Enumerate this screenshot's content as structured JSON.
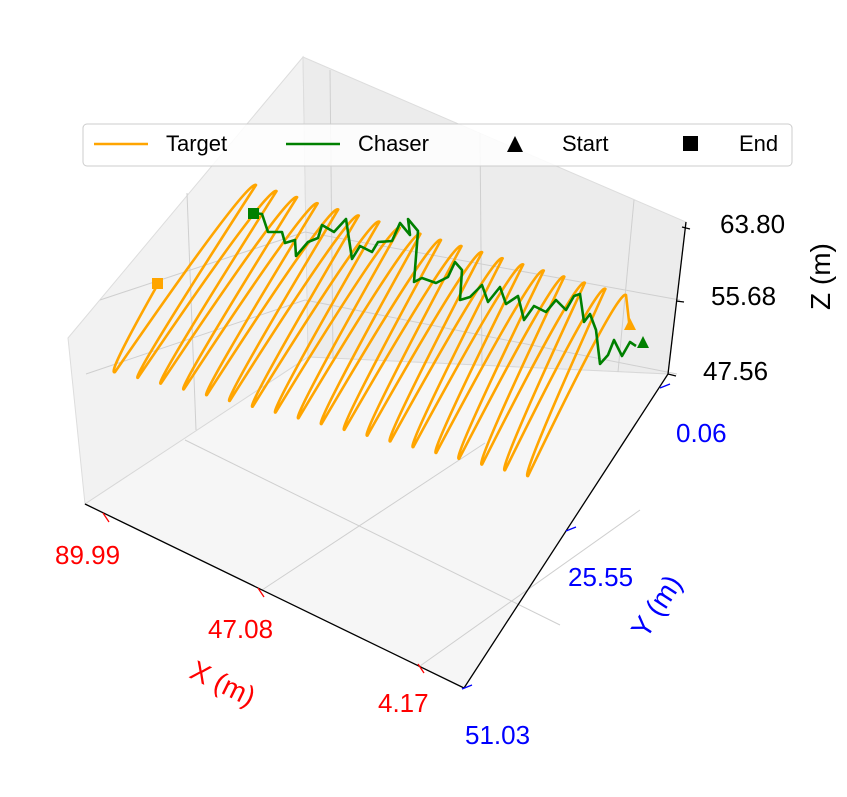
{
  "chart_data": {
    "type": "line3d",
    "title": "",
    "axes": {
      "x": {
        "label": "X (m)",
        "ticks": [
          "89.99",
          "47.08",
          "4.17"
        ],
        "range": [
          4.17,
          89.99
        ],
        "color": "#ff0000"
      },
      "y": {
        "label": "Y (m)",
        "ticks": [
          "0.06",
          "25.55",
          "51.03"
        ],
        "range": [
          0.06,
          51.03
        ],
        "color": "#0000ff"
      },
      "z": {
        "label": "Z (m)",
        "ticks": [
          "47.56",
          "55.68",
          "63.80"
        ],
        "range": [
          47.56,
          63.8
        ],
        "color": "#000000"
      }
    },
    "legend": {
      "placement": "top-center",
      "entries": [
        {
          "label": "Target",
          "kind": "line",
          "color": "#ffa500"
        },
        {
          "label": "Chaser",
          "kind": "line",
          "color": "#008000"
        },
        {
          "label": "Start",
          "kind": "triangle",
          "color": "#000000"
        },
        {
          "label": "End",
          "kind": "square",
          "color": "#000000"
        }
      ]
    },
    "series": [
      {
        "name": "Target",
        "color": "#ffa500",
        "description_points": "zigzag trajectory sweeping along X with oscillating Z",
        "start": {
          "x": 4.17,
          "y": 0.06,
          "z": 58.5
        },
        "end": {
          "x": 89.99,
          "y": 0.06,
          "z": 57.0
        }
      },
      {
        "name": "Chaser",
        "color": "#008000",
        "start": {
          "x": 4.17,
          "y": 0.06,
          "z": 51.0
        },
        "end": {
          "x": 55.0,
          "y": 0.06,
          "z": 63.8
        }
      }
    ],
    "grid": true
  }
}
